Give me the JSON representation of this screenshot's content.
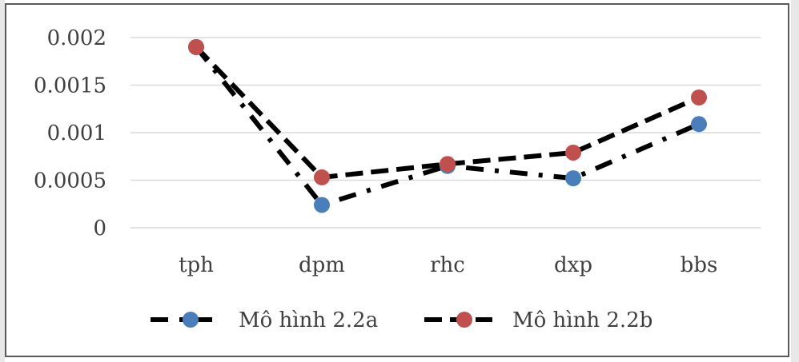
{
  "chart_data": {
    "type": "line",
    "categories": [
      "tph",
      "dpm",
      "rhc",
      "dxp",
      "bbs"
    ],
    "yticks": [
      "0.002",
      "0.0015",
      "0.001",
      "0.0005",
      "0"
    ],
    "ylim": [
      0,
      0.002
    ],
    "grid": true,
    "legend_position": "bottom",
    "series": [
      {
        "name": "Mô hình 2.2a",
        "values": [
          0.0019,
          0.00024,
          0.00065,
          0.00052,
          0.00109
        ],
        "marker_color": "#4a7ebb",
        "line_color": "#000000",
        "line_style": "dash-dot"
      },
      {
        "name": "Mô hình 2.2b",
        "values": [
          0.0019,
          0.00053,
          0.00067,
          0.00079,
          0.00137
        ],
        "marker_color": "#c0504d",
        "line_color": "#000000",
        "line_style": "dash"
      }
    ]
  }
}
